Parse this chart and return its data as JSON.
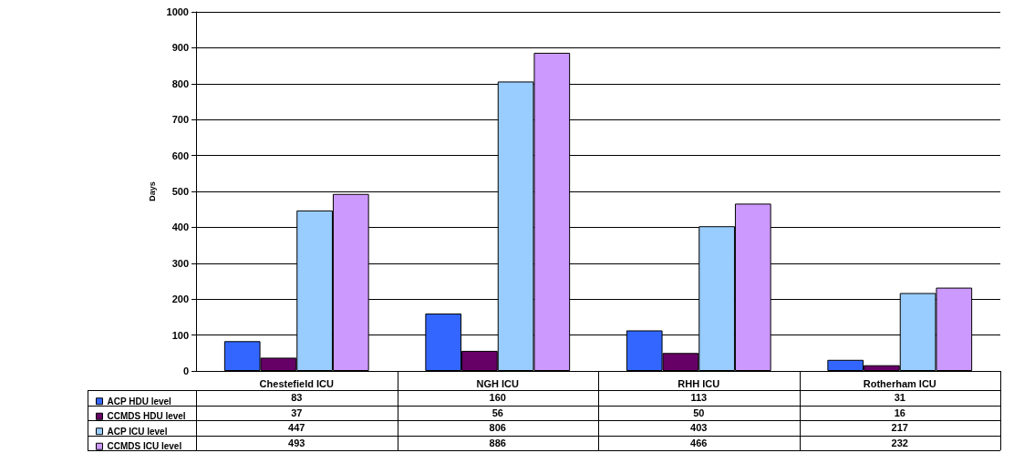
{
  "chart_data": {
    "type": "bar",
    "ylabel": "Days",
    "categories": [
      "Chestefield ICU",
      "NGH ICU",
      "RHH ICU",
      "Rotherham ICU"
    ],
    "series": [
      {
        "name": "ACP HDU level",
        "color": "#3366ff",
        "values": [
          83,
          160,
          113,
          31
        ]
      },
      {
        "name": "CCMDS HDU level",
        "color": "#660066",
        "values": [
          37,
          56,
          50,
          16
        ]
      },
      {
        "name": "ACP ICU level",
        "color": "#99ccff",
        "values": [
          447,
          806,
          403,
          217
        ]
      },
      {
        "name": "CCMDS ICU level",
        "color": "#cc99ff",
        "values": [
          493,
          886,
          466,
          232
        ]
      }
    ],
    "ylim": [
      0,
      1000
    ],
    "yticks": [
      0,
      100,
      200,
      300,
      400,
      500,
      600,
      700,
      800,
      900,
      1000
    ],
    "grid": "y",
    "legend": "bottom left",
    "data_labels": true
  }
}
